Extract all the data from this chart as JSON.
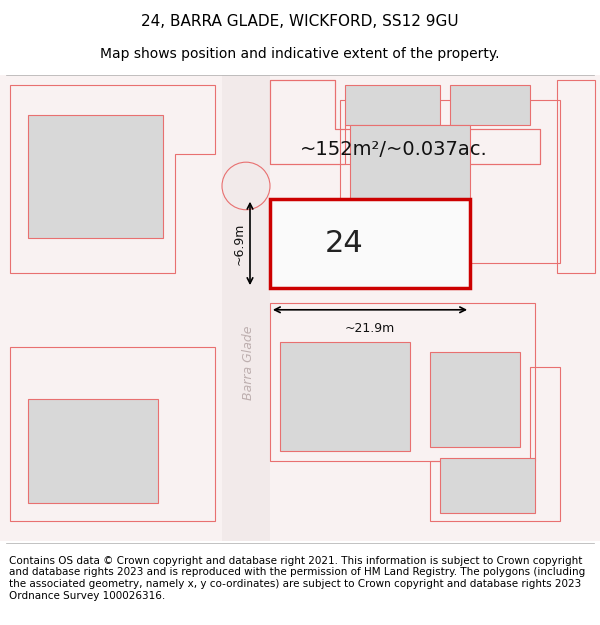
{
  "title_line1": "24, BARRA GLADE, WICKFORD, SS12 9GU",
  "title_line2": "Map shows position and indicative extent of the property.",
  "footer_text": "Contains OS data © Crown copyright and database right 2021. This information is subject to Crown copyright and database rights 2023 and is reproduced with the permission of HM Land Registry. The polygons (including the associated geometry, namely x, y co-ordinates) are subject to Crown copyright and database rights 2023 Ordnance Survey 100026316.",
  "background_color": "#ffffff",
  "map_bg_color": "#f9f2f2",
  "building_fill": "#d8d8d8",
  "outline_color": "#e87070",
  "plot_border_color": "#cc0000",
  "area_text": "~152m²/~0.037ac.",
  "label_text": "24",
  "dim_width": "~21.9m",
  "dim_height": "~6.9m",
  "road_label": "Barra Glade",
  "title_fontsize": 11,
  "subtitle_fontsize": 10,
  "footer_fontsize": 7.5
}
